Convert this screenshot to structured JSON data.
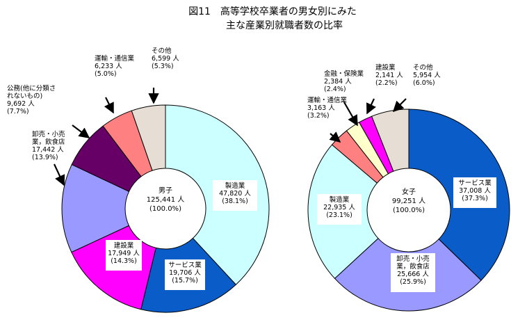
{
  "chart_data": {
    "title": {
      "line1": "図11　高等学校卒業者の男女別にみた",
      "line2": "主な産業別就職者数の比率"
    },
    "charts": [
      {
        "type": "pie",
        "center_label": {
          "name": "男子",
          "count": "125,441 人",
          "pct": "(100.0%)"
        },
        "slices": [
          {
            "key": "mfg",
            "value": 38.1,
            "color": "#ccffff",
            "lines": [
              "製造業",
              "47,820 人",
              "(38.1%)"
            ]
          },
          {
            "key": "service",
            "value": 15.7,
            "color": "#0a5cc8",
            "lines": [
              "サービス業",
              "19,706 人",
              "(15.7%)"
            ]
          },
          {
            "key": "constr",
            "value": 14.3,
            "color": "#ff00ff",
            "lines": [
              "建設業",
              "17,949 人",
              "(14.3%)"
            ]
          },
          {
            "key": "retail",
            "value": 13.9,
            "color": "#9999ff",
            "lines": [
              "卸売・小売",
              "業，飲食店",
              "17,442 人",
              "(13.9%)"
            ]
          },
          {
            "key": "public",
            "value": 7.7,
            "color": "#660066",
            "lines": [
              "公務(他に分類さ",
              "れないもの)",
              "9,692 人",
              "(7.7%)"
            ]
          },
          {
            "key": "transport",
            "value": 5.0,
            "color": "#ff8080",
            "lines": [
              "運輸・通信業",
              "6,233 人",
              "(5.0%)"
            ]
          },
          {
            "key": "other",
            "value": 5.3,
            "color": "#e6ded4",
            "lines": [
              "その他",
              "6,599 人",
              "(5.3%)"
            ]
          }
        ]
      },
      {
        "type": "pie",
        "center_label": {
          "name": "女子",
          "count": "99,251 人",
          "pct": "(100.0%)"
        },
        "slices": [
          {
            "key": "service",
            "value": 37.3,
            "color": "#0a5cc8",
            "lines": [
              "サービス業",
              "37,008 人",
              "(37.3%)"
            ]
          },
          {
            "key": "retail",
            "value": 25.9,
            "color": "#9999ff",
            "lines": [
              "卸売・小売",
              "業，飲食店",
              "25,666 人",
              "(25.9%)"
            ]
          },
          {
            "key": "mfg",
            "value": 23.1,
            "color": "#ccffff",
            "lines": [
              "製造業",
              "22,935 人",
              "(23.1%)"
            ]
          },
          {
            "key": "transport",
            "value": 3.2,
            "color": "#ff8080",
            "lines": [
              "運輸・通信業",
              "3,163 人",
              "(3.2%)"
            ]
          },
          {
            "key": "finance",
            "value": 2.4,
            "color": "#ffffcc",
            "lines": [
              "金融・保険業",
              "2,384 人",
              "(2.4%)"
            ]
          },
          {
            "key": "constr",
            "value": 2.2,
            "color": "#ff00ff",
            "lines": [
              "建設業",
              "2,141 人",
              "(2.2%)"
            ]
          },
          {
            "key": "other",
            "value": 6.0,
            "color": "#e6ded4",
            "lines": [
              "その他",
              "5,954 人",
              "(6.0%)"
            ]
          }
        ]
      }
    ]
  }
}
